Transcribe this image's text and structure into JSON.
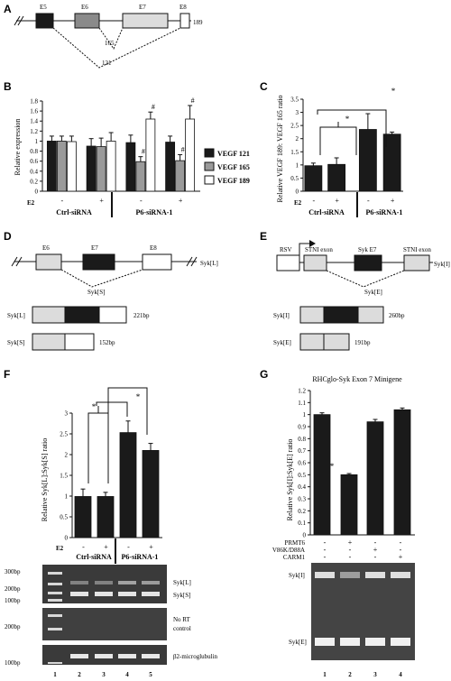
{
  "panels": {
    "A": {
      "label": "A",
      "exons": [
        "E5",
        "E6",
        "E7",
        "E8"
      ],
      "splice_labels": [
        "165",
        "121"
      ],
      "isoform_label": "189"
    },
    "B": {
      "label": "B",
      "ylabel": "Relative expression",
      "legend": [
        "VEGF 121",
        "VEGF 165",
        "VEGF 189"
      ],
      "e2_label": "E2",
      "e2_signs": [
        "-",
        "+",
        "-",
        "+"
      ],
      "group_labels": [
        "Ctrl-siRNA",
        "P6-siRNA-1"
      ],
      "sig_mark": "#"
    },
    "C": {
      "label": "C",
      "ylabel": "Relative VEGF 189: VEGF 165 ratio",
      "e2_label": "E2",
      "e2_signs": [
        "-",
        "+",
        "-",
        "+"
      ],
      "group_labels": [
        "Ctrl-siRNA",
        "P6-siRNA-1"
      ],
      "sig_mark": "*"
    },
    "D": {
      "label": "D",
      "exons": [
        "E6",
        "E7",
        "E8"
      ],
      "iso_long": "Syk[L]",
      "iso_short": "Syk[S]",
      "products": [
        {
          "name": "Syk[L]",
          "size": "221bp"
        },
        {
          "name": "Syk[S]",
          "size": "152bp"
        }
      ]
    },
    "E": {
      "label": "E",
      "promoter": "RSV",
      "exons": [
        "STNI exon",
        "Syk E7",
        "STNI exon"
      ],
      "iso_long": "Syk[I]",
      "iso_short": "Syk[E]",
      "products": [
        {
          "name": "Syk[I]",
          "size": "260bp"
        },
        {
          "name": "Syk[E]",
          "size": "191bp"
        }
      ]
    },
    "F": {
      "label": "F",
      "ylabel": "Relative Syk[L]:Syk[S] ratio",
      "e2_label": "E2",
      "e2_signs": [
        "-",
        "+",
        "-",
        "+"
      ],
      "group_labels": [
        "Ctrl-siRNA",
        "P6-siRNA-1"
      ],
      "sig_mark": "*",
      "bar_numbers": [
        "2",
        "3",
        "4",
        "5"
      ],
      "gel_markers": [
        "300bp",
        "200bp",
        "100bp",
        "200bp",
        "100bp"
      ],
      "gel_labels": [
        "Syk[L]",
        "Syk[S]",
        "No RT",
        "control",
        "β2-microglubulin"
      ],
      "lane_numbers": [
        "1",
        "2",
        "3",
        "4",
        "5"
      ]
    },
    "G": {
      "label": "G",
      "title": "RHCglo-Syk Exon 7 Minigene",
      "ylabel": "Relative Syk[I]:Syk[E] ratio",
      "sig_mark": "*",
      "treatments": [
        {
          "name": "PRMT6",
          "signs": [
            "-",
            "+",
            "-",
            "-"
          ]
        },
        {
          "name": "V86K/D88A",
          "signs": [
            "-",
            "-",
            "+",
            "-"
          ]
        },
        {
          "name": "CARM1",
          "signs": [
            "-",
            "-",
            "-",
            "+"
          ]
        }
      ],
      "gel_labels": [
        "Syk[I]",
        "Syk[E]"
      ],
      "lane_numbers": [
        "1",
        "2",
        "3",
        "4"
      ]
    }
  },
  "chart_data": [
    {
      "panel": "B",
      "type": "bar",
      "categories": [
        "Ctrl-siRNA E2-",
        "Ctrl-siRNA E2+",
        "P6-siRNA-1 E2-",
        "P6-siRNA-1 E2+"
      ],
      "ylabel": "Relative expression",
      "ylim": [
        0,
        1.8
      ],
      "yticks": [
        "0",
        "0.2",
        "0.4",
        "0.6",
        "0.8",
        "1",
        "1.2",
        "1.4",
        "1.6",
        "1.8"
      ],
      "series": [
        {
          "name": "VEGF 121",
          "color": "#1a1a1a",
          "values": [
            1.0,
            0.9,
            0.97,
            0.98
          ],
          "errors": [
            0.1,
            0.15,
            0.15,
            0.12
          ],
          "marks": [
            "",
            "",
            "",
            ""
          ]
        },
        {
          "name": "VEGF 165",
          "color": "#9a9a9a",
          "values": [
            1.0,
            0.89,
            0.59,
            0.61
          ],
          "errors": [
            0.1,
            0.17,
            0.1,
            0.12
          ],
          "marks": [
            "",
            "",
            "#",
            "#"
          ]
        },
        {
          "name": "VEGF 189",
          "color": "#ffffff",
          "values": [
            0.99,
            1.0,
            1.44,
            1.44
          ],
          "errors": [
            0.11,
            0.17,
            0.14,
            0.27
          ],
          "marks": [
            "",
            "",
            "#",
            "#"
          ]
        }
      ]
    },
    {
      "panel": "C",
      "type": "bar",
      "categories": [
        "Ctrl-siRNA E2-",
        "Ctrl-siRNA E2+",
        "P6-siRNA-1 E2-",
        "P6-siRNA-1 E2+"
      ],
      "ylabel": "Relative VEGF 189: VEGF 165 ratio",
      "ylim": [
        0,
        3.5
      ],
      "yticks": [
        "0",
        "0.5",
        "1",
        "1.5",
        "2",
        "2.5",
        "3",
        "3.5"
      ],
      "values": [
        0.97,
        1.02,
        2.35,
        2.17
      ],
      "errors": [
        0.1,
        0.25,
        0.6,
        0.08
      ],
      "color": "#1a1a1a"
    },
    {
      "panel": "F",
      "type": "bar",
      "categories": [
        "Ctrl-siRNA E2-",
        "Ctrl-siRNA E2+",
        "P6-siRNA-1 E2-",
        "P6-siRNA-1 E2+"
      ],
      "ylabel": "Relative Syk[L]:Syk[S] ratio",
      "ylim": [
        0,
        3
      ],
      "yticks": [
        "0",
        "0.5",
        "1",
        "1.5",
        "2",
        "2.5",
        "3"
      ],
      "values": [
        0.99,
        0.99,
        2.53,
        2.1
      ],
      "errors": [
        0.18,
        0.1,
        0.28,
        0.17
      ],
      "color": "#1a1a1a"
    },
    {
      "panel": "G",
      "type": "bar",
      "categories": [
        "1",
        "2",
        "3",
        "4"
      ],
      "ylabel": "Relative Syk[I]:Syk[E] ratio",
      "ylim": [
        0,
        1.2
      ],
      "yticks": [
        "0",
        "0.1",
        "0.2",
        "0.3",
        "0.4",
        "0.5",
        "0.6",
        "0.7",
        "0.8",
        "0.9",
        "1",
        "1.1",
        "1.2"
      ],
      "values": [
        1.0,
        0.5,
        0.94,
        1.04
      ],
      "errors": [
        0.015,
        0.01,
        0.02,
        0.015
      ],
      "color": "#1a1a1a"
    }
  ]
}
